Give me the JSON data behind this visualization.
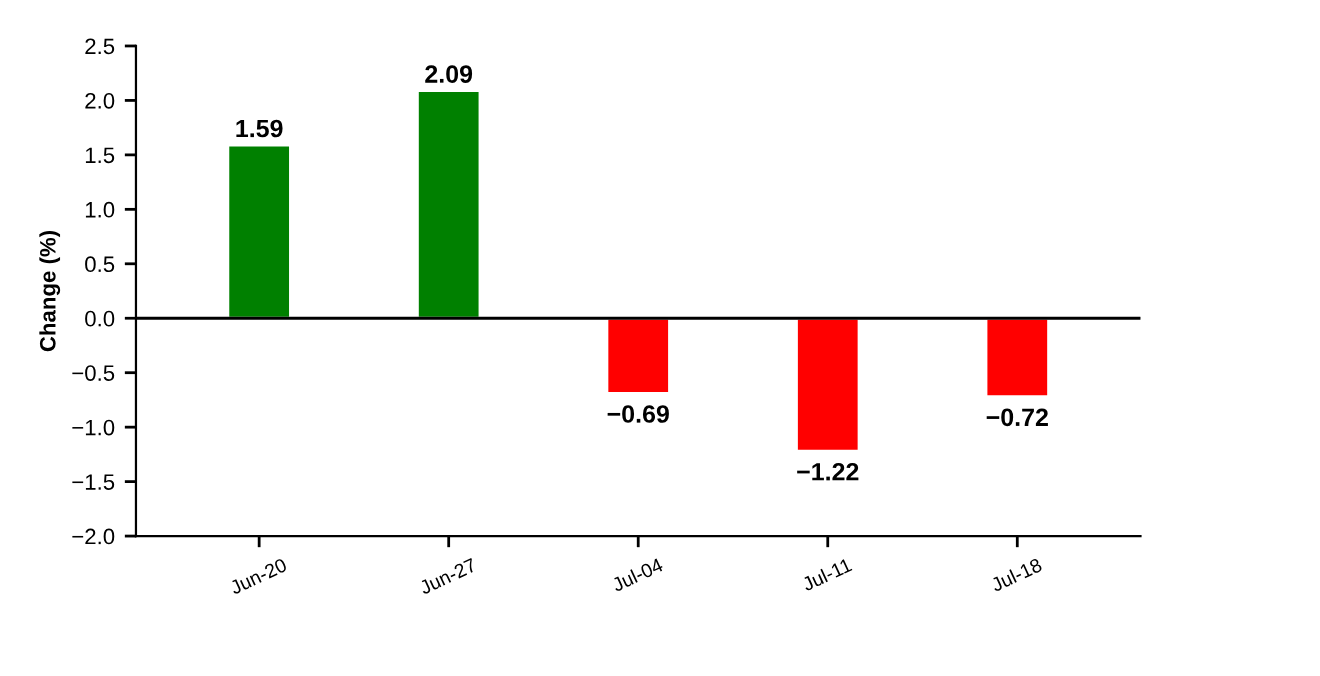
{
  "chart_data": {
    "type": "bar",
    "ylabel": "Change (%)",
    "categories": [
      "Jun-20",
      "Jun-27",
      "Jul-04",
      "Jul-11",
      "Jul-18"
    ],
    "values": [
      1.59,
      2.09,
      -0.69,
      -1.22,
      -0.72
    ],
    "colors": [
      "#008000",
      "#008000",
      "#ff0000",
      "#ff0000",
      "#ff0000"
    ],
    "value_labels": [
      "1.59",
      "2.09",
      "−0.69",
      "−1.22",
      "−0.72"
    ],
    "ylim": [
      -2.0,
      2.5
    ],
    "yticks": [
      {
        "value": -2.0,
        "label": "−2.0"
      },
      {
        "value": -1.5,
        "label": "−1.5"
      },
      {
        "value": -1.0,
        "label": "−1.0"
      },
      {
        "value": -0.5,
        "label": "−0.5"
      },
      {
        "value": 0,
        "label": "0.0"
      },
      {
        "value": 0.5,
        "label": "0.5"
      },
      {
        "value": 1.0,
        "label": "1.0"
      },
      {
        "value": 1.5,
        "label": "1.5"
      },
      {
        "value": 2.0,
        "label": "2.0"
      },
      {
        "value": 2.5,
        "label": "2.5"
      }
    ],
    "ref_lines": [
      {
        "axis": "y",
        "value": 0,
        "color": "#000000"
      }
    ],
    "grid": false
  }
}
